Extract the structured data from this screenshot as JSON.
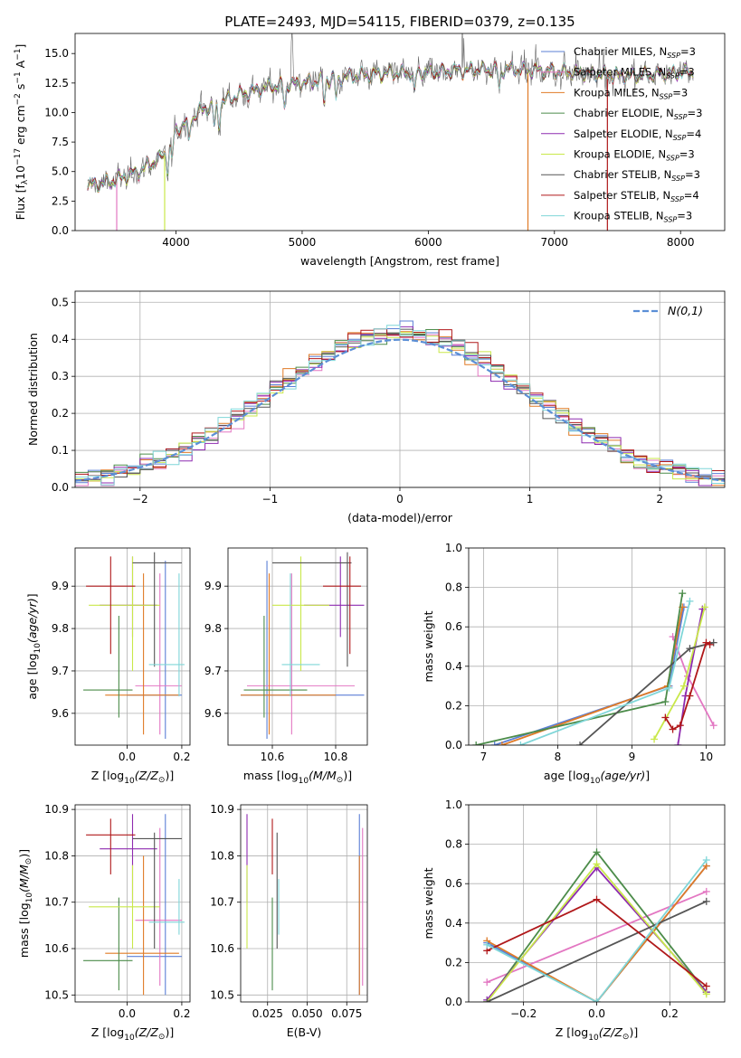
{
  "figure": {
    "title": "PLATE=2493, MJD=54115, FIBERID=0379, z=0.135"
  },
  "colors": {
    "Chabrier MILES": "#5b7fd6",
    "Salpeter MILES": "#e377c2",
    "Kroupa MILES": "#e07b27",
    "Chabrier ELODIE": "#4c8c4a",
    "Salpeter ELODIE": "#8e2bb0",
    "Kroupa ELODIE": "#c9e84a",
    "Chabrier STELIB": "#555555",
    "Salpeter STELIB": "#b0181a",
    "Kroupa STELIB": "#7fd6d8",
    "normal_fit": "#5b8fd6"
  },
  "chart_data": [
    {
      "id": "spectrum",
      "type": "line",
      "xlabel": "wavelength [Angstrom, rest frame]",
      "ylabel": "Flux [f",
      "xlim": [
        3200,
        8350
      ],
      "ylim": [
        0,
        16.7
      ],
      "xticks": [
        4000,
        5000,
        6000,
        7000,
        8000
      ],
      "yticks": [
        0.0,
        2.5,
        5.0,
        7.5,
        10.0,
        12.5,
        15.0
      ],
      "legend_position": "right",
      "legend": [
        {
          "model": "Chabrier MILES",
          "nssp": "3"
        },
        {
          "model": "Salpeter MILES",
          "nssp": "3"
        },
        {
          "model": "Kroupa MILES",
          "nssp": "3"
        },
        {
          "model": "Chabrier ELODIE",
          "nssp": "3"
        },
        {
          "model": "Salpeter ELODIE",
          "nssp": "4"
        },
        {
          "model": "Kroupa ELODIE",
          "nssp": "3"
        },
        {
          "model": "Chabrier STELIB",
          "nssp": "3"
        },
        {
          "model": "Salpeter STELIB",
          "nssp": "4"
        },
        {
          "model": "Kroupa STELIB",
          "nssp": "3"
        }
      ],
      "continuum": {
        "x": [
          3300,
          3500,
          3700,
          3900,
          4000,
          4200,
          4500,
          4800,
          5000,
          5300,
          5600,
          5900,
          6000,
          6300,
          6600,
          6800,
          7000,
          7300,
          7600,
          7900,
          8100
        ],
        "y": [
          3.8,
          4.2,
          5.0,
          6.3,
          8.5,
          10.2,
          11.5,
          12.3,
          12.5,
          13.0,
          13.3,
          13.4,
          13.4,
          13.6,
          13.7,
          13.6,
          13.5,
          13.3,
          13.1,
          13.3,
          13.5
        ]
      },
      "edges": [
        {
          "model": "Salpeter MILES",
          "x": 3530
        },
        {
          "model": "Kroupa ELODIE",
          "x": 3910
        },
        {
          "model": "Kroupa MILES",
          "x": 6790
        },
        {
          "model": "Salpeter STELIB",
          "x": 7420
        }
      ]
    },
    {
      "id": "residuals",
      "type": "histogram",
      "xlabel": "(data-model)/error",
      "ylabel": "Normed distribution",
      "xlim": [
        -2.5,
        2.5
      ],
      "ylim": [
        0,
        0.53
      ],
      "xticks": [
        -2,
        -1,
        0,
        1,
        2
      ],
      "yticks": [
        0.0,
        0.1,
        0.2,
        0.3,
        0.4,
        0.5
      ],
      "grid": true,
      "legend_label": "N(0,1)",
      "legend_position": "top-right",
      "bin_width": 0.1,
      "bin_start": -2.5
    },
    {
      "id": "Z_vs_age",
      "type": "errorbar",
      "xlabel": "Z [log",
      "ylabel": "age  [log",
      "xlim": [
        -0.19,
        0.23
      ],
      "ylim": [
        9.525,
        9.99
      ],
      "xticks": [
        0.0,
        0.2
      ],
      "yticks": [
        9.6,
        9.7,
        9.8,
        9.9
      ],
      "grid": true
    },
    {
      "id": "mass_vs_age",
      "type": "errorbar",
      "xlabel": "mass [log",
      "ylabel": "",
      "xlim": [
        10.46,
        10.9
      ],
      "ylim": [
        9.525,
        9.99
      ],
      "xticks": [
        10.6,
        10.8
      ],
      "yticks": [
        9.6,
        9.7,
        9.8,
        9.9
      ],
      "grid": true
    },
    {
      "id": "age_weights",
      "type": "line",
      "xlabel": "age  [log",
      "ylabel": "mass weight",
      "xlim": [
        6.8,
        10.25
      ],
      "ylim": [
        0,
        1
      ],
      "xticks": [
        7,
        8,
        9,
        10
      ],
      "yticks": [
        0.0,
        0.2,
        0.4,
        0.6,
        0.8,
        1.0
      ],
      "grid": true,
      "series": [
        {
          "model": "Chabrier MILES",
          "x": [
            7.15,
            9.5,
            9.7
          ],
          "y": [
            0.0,
            0.3,
            0.7
          ]
        },
        {
          "model": "Salpeter MILES",
          "x": [
            9.55,
            9.75,
            10.1
          ],
          "y": [
            0.55,
            0.35,
            0.1
          ]
        },
        {
          "model": "Kroupa MILES",
          "x": [
            7.25,
            9.48,
            9.68
          ],
          "y": [
            0.0,
            0.3,
            0.7
          ]
        },
        {
          "model": "Chabrier ELODIE",
          "x": [
            6.9,
            9.45,
            9.68
          ],
          "y": [
            0.0,
            0.22,
            0.77
          ]
        },
        {
          "model": "Salpeter ELODIE",
          "x": [
            9.62,
            9.72,
            9.95
          ],
          "y": [
            0.0,
            0.25,
            0.69
          ]
        },
        {
          "model": "Kroupa ELODIE",
          "x": [
            9.3,
            9.7,
            9.98
          ],
          "y": [
            0.03,
            0.3,
            0.7
          ]
        },
        {
          "model": "Chabrier STELIB",
          "x": [
            8.3,
            9.78,
            10.1
          ],
          "y": [
            0.0,
            0.49,
            0.52
          ]
        },
        {
          "model": "Salpeter STELIB",
          "x": [
            9.45,
            9.55,
            9.65,
            9.78,
            10.0,
            10.05
          ],
          "y": [
            0.14,
            0.08,
            0.1,
            0.25,
            0.52,
            0.51
          ]
        },
        {
          "model": "Kroupa STELIB",
          "x": [
            7.5,
            9.5,
            9.78
          ],
          "y": [
            0.0,
            0.29,
            0.73
          ]
        }
      ]
    },
    {
      "id": "Z_vs_mass",
      "type": "errorbar",
      "xlabel": "Z [log",
      "ylabel": "mass [log",
      "xlim": [
        -0.19,
        0.23
      ],
      "ylim": [
        10.485,
        10.91
      ],
      "xticks": [
        0.0,
        0.2
      ],
      "yticks": [
        10.5,
        10.6,
        10.7,
        10.8,
        10.9
      ],
      "grid": true
    },
    {
      "id": "ebv_vs_mass",
      "type": "errorbar",
      "xlabel": "E(B-V)",
      "ylabel": "",
      "xlim": [
        0.008,
        0.088
      ],
      "ylim": [
        10.485,
        10.91
      ],
      "xticks": [
        0.025,
        0.05,
        0.075
      ],
      "xticklabels": [
        "0.025",
        "0.050",
        "0.075"
      ],
      "yticks": [
        10.5,
        10.6,
        10.7,
        10.8,
        10.9
      ],
      "grid": true
    },
    {
      "id": "Z_weights",
      "type": "line",
      "xlabel": "Z [log",
      "ylabel": "mass weight",
      "xlim": [
        -0.35,
        0.35
      ],
      "ylim": [
        0,
        1
      ],
      "xticks": [
        -0.2,
        0.0,
        0.2
      ],
      "yticks": [
        0.0,
        0.2,
        0.4,
        0.6,
        0.8,
        1.0
      ],
      "grid": true,
      "series": [
        {
          "model": "Chabrier MILES",
          "x": [
            -0.3,
            0.0,
            0.3
          ],
          "y": [
            0.3,
            0.0,
            0.69
          ]
        },
        {
          "model": "Salpeter MILES",
          "x": [
            -0.3,
            0.3
          ],
          "y": [
            0.1,
            0.56
          ]
        },
        {
          "model": "Kroupa MILES",
          "x": [
            -0.3,
            0.0,
            0.3
          ],
          "y": [
            0.31,
            0.0,
            0.69
          ]
        },
        {
          "model": "Chabrier ELODIE",
          "x": [
            -0.3,
            0.0,
            0.3
          ],
          "y": [
            0.0,
            0.76,
            0.05
          ]
        },
        {
          "model": "Salpeter ELODIE",
          "x": [
            -0.3,
            0.0,
            0.3
          ],
          "y": [
            0.01,
            0.68,
            0.05
          ]
        },
        {
          "model": "Kroupa ELODIE",
          "x": [
            -0.3,
            0.0,
            0.3
          ],
          "y": [
            0.0,
            0.7,
            0.04
          ]
        },
        {
          "model": "Chabrier STELIB",
          "x": [
            -0.3,
            0.3
          ],
          "y": [
            0.0,
            0.51
          ]
        },
        {
          "model": "Salpeter STELIB",
          "x": [
            -0.3,
            0.0,
            0.3
          ],
          "y": [
            0.26,
            0.52,
            0.08
          ]
        },
        {
          "model": "Kroupa STELIB",
          "x": [
            -0.3,
            0.0,
            0.3
          ],
          "y": [
            0.29,
            0.0,
            0.72
          ]
        }
      ]
    }
  ],
  "points": [
    {
      "model": "Chabrier MILES",
      "Z": 0.14,
      "Zlo": 0.0,
      "Zhi": 0.2,
      "age": 9.643,
      "agelo": 9.54,
      "agehi": 9.96,
      "mass": 10.583,
      "masslo": 10.5,
      "masshi": 10.89,
      "ebv": 0.083,
      "ebvlo": 0.083,
      "ebvhi": 0.083
    },
    {
      "model": "Salpeter MILES",
      "Z": 0.12,
      "Zlo": 0.03,
      "Zhi": 0.2,
      "age": 9.665,
      "agelo": 9.55,
      "agehi": 9.93,
      "mass": 10.661,
      "masslo": 10.52,
      "masshi": 10.86,
      "ebv": 0.085,
      "ebvlo": 0.085,
      "ebvhi": 0.085
    },
    {
      "model": "Kroupa MILES",
      "Z": 0.06,
      "Zlo": -0.08,
      "Zhi": 0.19,
      "age": 9.643,
      "agelo": 9.55,
      "agehi": 9.93,
      "mass": 10.59,
      "masslo": 10.5,
      "masshi": 10.8,
      "ebv": 0.083,
      "ebvlo": 0.083,
      "ebvhi": 0.083
    },
    {
      "model": "Chabrier ELODIE",
      "Z": -0.03,
      "Zlo": -0.16,
      "Zhi": 0.02,
      "age": 9.655,
      "agelo": 9.59,
      "agehi": 9.83,
      "mass": 10.574,
      "masslo": 10.51,
      "masshi": 10.71,
      "ebv": 0.028,
      "ebvlo": 0.028,
      "ebvhi": 0.028
    },
    {
      "model": "Salpeter ELODIE",
      "Z": 0.02,
      "Zlo": -0.1,
      "Zhi": 0.11,
      "age": 9.855,
      "agelo": 9.78,
      "agehi": 9.97,
      "mass": 10.815,
      "masslo": 10.7,
      "masshi": 10.89,
      "ebv": 0.012,
      "ebvlo": 0.012,
      "ebvhi": 0.012
    },
    {
      "model": "Kroupa ELODIE",
      "Z": 0.02,
      "Zlo": -0.14,
      "Zhi": 0.12,
      "age": 9.855,
      "agelo": 9.7,
      "agehi": 9.97,
      "mass": 10.69,
      "masslo": 10.6,
      "masshi": 10.78,
      "ebv": 0.012,
      "ebvlo": 0.012,
      "ebvhi": 0.012
    },
    {
      "model": "Chabrier STELIB",
      "Z": 0.1,
      "Zlo": 0.02,
      "Zhi": 0.2,
      "age": 9.955,
      "agelo": 9.71,
      "agehi": 9.98,
      "mass": 10.837,
      "masslo": 10.6,
      "masshi": 10.85,
      "ebv": 0.031,
      "ebvlo": 0.031,
      "ebvhi": 0.031
    },
    {
      "model": "Salpeter STELIB",
      "Z": -0.06,
      "Zlo": -0.15,
      "Zhi": 0.03,
      "age": 9.9,
      "agelo": 9.74,
      "agehi": 9.97,
      "mass": 10.845,
      "masslo": 10.76,
      "masshi": 10.88,
      "ebv": 0.028,
      "ebvlo": 0.028,
      "ebvhi": 0.028
    },
    {
      "model": "Kroupa STELIB",
      "Z": 0.19,
      "Zlo": 0.08,
      "Zhi": 0.21,
      "age": 9.715,
      "agelo": 9.64,
      "agehi": 9.93,
      "mass": 10.657,
      "masslo": 10.63,
      "masshi": 10.75,
      "ebv": 0.032,
      "ebvlo": 0.032,
      "ebvhi": 0.032
    }
  ]
}
